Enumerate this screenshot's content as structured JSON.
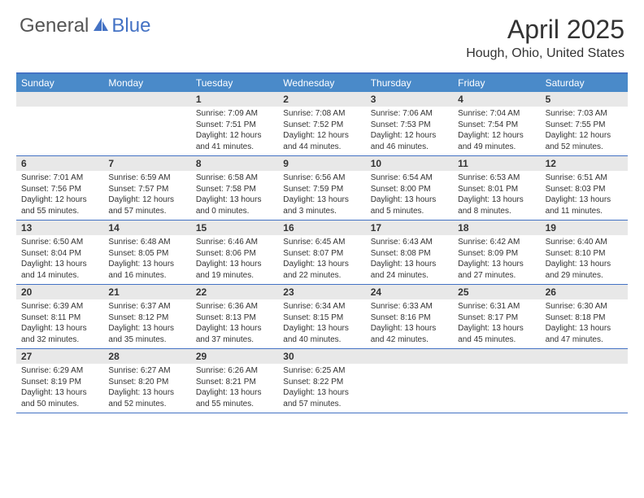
{
  "logo": {
    "general": "General",
    "blue": "Blue"
  },
  "title": "April 2025",
  "location": "Hough, Ohio, United States",
  "colors": {
    "header_bg": "#4a8ac9",
    "border": "#4472c4",
    "daynum_bg": "#e8e8e8",
    "text": "#333333"
  },
  "weekdays": [
    "Sunday",
    "Monday",
    "Tuesday",
    "Wednesday",
    "Thursday",
    "Friday",
    "Saturday"
  ],
  "weeks": [
    [
      {
        "empty": true
      },
      {
        "empty": true
      },
      {
        "num": "1",
        "sunrise": "Sunrise: 7:09 AM",
        "sunset": "Sunset: 7:51 PM",
        "day1": "Daylight: 12 hours",
        "day2": "and 41 minutes."
      },
      {
        "num": "2",
        "sunrise": "Sunrise: 7:08 AM",
        "sunset": "Sunset: 7:52 PM",
        "day1": "Daylight: 12 hours",
        "day2": "and 44 minutes."
      },
      {
        "num": "3",
        "sunrise": "Sunrise: 7:06 AM",
        "sunset": "Sunset: 7:53 PM",
        "day1": "Daylight: 12 hours",
        "day2": "and 46 minutes."
      },
      {
        "num": "4",
        "sunrise": "Sunrise: 7:04 AM",
        "sunset": "Sunset: 7:54 PM",
        "day1": "Daylight: 12 hours",
        "day2": "and 49 minutes."
      },
      {
        "num": "5",
        "sunrise": "Sunrise: 7:03 AM",
        "sunset": "Sunset: 7:55 PM",
        "day1": "Daylight: 12 hours",
        "day2": "and 52 minutes."
      }
    ],
    [
      {
        "num": "6",
        "sunrise": "Sunrise: 7:01 AM",
        "sunset": "Sunset: 7:56 PM",
        "day1": "Daylight: 12 hours",
        "day2": "and 55 minutes."
      },
      {
        "num": "7",
        "sunrise": "Sunrise: 6:59 AM",
        "sunset": "Sunset: 7:57 PM",
        "day1": "Daylight: 12 hours",
        "day2": "and 57 minutes."
      },
      {
        "num": "8",
        "sunrise": "Sunrise: 6:58 AM",
        "sunset": "Sunset: 7:58 PM",
        "day1": "Daylight: 13 hours",
        "day2": "and 0 minutes."
      },
      {
        "num": "9",
        "sunrise": "Sunrise: 6:56 AM",
        "sunset": "Sunset: 7:59 PM",
        "day1": "Daylight: 13 hours",
        "day2": "and 3 minutes."
      },
      {
        "num": "10",
        "sunrise": "Sunrise: 6:54 AM",
        "sunset": "Sunset: 8:00 PM",
        "day1": "Daylight: 13 hours",
        "day2": "and 5 minutes."
      },
      {
        "num": "11",
        "sunrise": "Sunrise: 6:53 AM",
        "sunset": "Sunset: 8:01 PM",
        "day1": "Daylight: 13 hours",
        "day2": "and 8 minutes."
      },
      {
        "num": "12",
        "sunrise": "Sunrise: 6:51 AM",
        "sunset": "Sunset: 8:03 PM",
        "day1": "Daylight: 13 hours",
        "day2": "and 11 minutes."
      }
    ],
    [
      {
        "num": "13",
        "sunrise": "Sunrise: 6:50 AM",
        "sunset": "Sunset: 8:04 PM",
        "day1": "Daylight: 13 hours",
        "day2": "and 14 minutes."
      },
      {
        "num": "14",
        "sunrise": "Sunrise: 6:48 AM",
        "sunset": "Sunset: 8:05 PM",
        "day1": "Daylight: 13 hours",
        "day2": "and 16 minutes."
      },
      {
        "num": "15",
        "sunrise": "Sunrise: 6:46 AM",
        "sunset": "Sunset: 8:06 PM",
        "day1": "Daylight: 13 hours",
        "day2": "and 19 minutes."
      },
      {
        "num": "16",
        "sunrise": "Sunrise: 6:45 AM",
        "sunset": "Sunset: 8:07 PM",
        "day1": "Daylight: 13 hours",
        "day2": "and 22 minutes."
      },
      {
        "num": "17",
        "sunrise": "Sunrise: 6:43 AM",
        "sunset": "Sunset: 8:08 PM",
        "day1": "Daylight: 13 hours",
        "day2": "and 24 minutes."
      },
      {
        "num": "18",
        "sunrise": "Sunrise: 6:42 AM",
        "sunset": "Sunset: 8:09 PM",
        "day1": "Daylight: 13 hours",
        "day2": "and 27 minutes."
      },
      {
        "num": "19",
        "sunrise": "Sunrise: 6:40 AM",
        "sunset": "Sunset: 8:10 PM",
        "day1": "Daylight: 13 hours",
        "day2": "and 29 minutes."
      }
    ],
    [
      {
        "num": "20",
        "sunrise": "Sunrise: 6:39 AM",
        "sunset": "Sunset: 8:11 PM",
        "day1": "Daylight: 13 hours",
        "day2": "and 32 minutes."
      },
      {
        "num": "21",
        "sunrise": "Sunrise: 6:37 AM",
        "sunset": "Sunset: 8:12 PM",
        "day1": "Daylight: 13 hours",
        "day2": "and 35 minutes."
      },
      {
        "num": "22",
        "sunrise": "Sunrise: 6:36 AM",
        "sunset": "Sunset: 8:13 PM",
        "day1": "Daylight: 13 hours",
        "day2": "and 37 minutes."
      },
      {
        "num": "23",
        "sunrise": "Sunrise: 6:34 AM",
        "sunset": "Sunset: 8:15 PM",
        "day1": "Daylight: 13 hours",
        "day2": "and 40 minutes."
      },
      {
        "num": "24",
        "sunrise": "Sunrise: 6:33 AM",
        "sunset": "Sunset: 8:16 PM",
        "day1": "Daylight: 13 hours",
        "day2": "and 42 minutes."
      },
      {
        "num": "25",
        "sunrise": "Sunrise: 6:31 AM",
        "sunset": "Sunset: 8:17 PM",
        "day1": "Daylight: 13 hours",
        "day2": "and 45 minutes."
      },
      {
        "num": "26",
        "sunrise": "Sunrise: 6:30 AM",
        "sunset": "Sunset: 8:18 PM",
        "day1": "Daylight: 13 hours",
        "day2": "and 47 minutes."
      }
    ],
    [
      {
        "num": "27",
        "sunrise": "Sunrise: 6:29 AM",
        "sunset": "Sunset: 8:19 PM",
        "day1": "Daylight: 13 hours",
        "day2": "and 50 minutes."
      },
      {
        "num": "28",
        "sunrise": "Sunrise: 6:27 AM",
        "sunset": "Sunset: 8:20 PM",
        "day1": "Daylight: 13 hours",
        "day2": "and 52 minutes."
      },
      {
        "num": "29",
        "sunrise": "Sunrise: 6:26 AM",
        "sunset": "Sunset: 8:21 PM",
        "day1": "Daylight: 13 hours",
        "day2": "and 55 minutes."
      },
      {
        "num": "30",
        "sunrise": "Sunrise: 6:25 AM",
        "sunset": "Sunset: 8:22 PM",
        "day1": "Daylight: 13 hours",
        "day2": "and 57 minutes."
      },
      {
        "empty": true
      },
      {
        "empty": true
      },
      {
        "empty": true
      }
    ]
  ]
}
